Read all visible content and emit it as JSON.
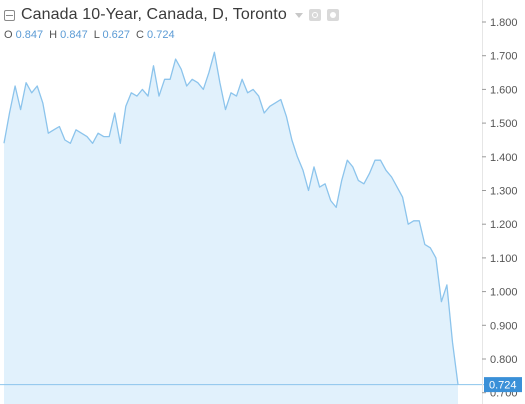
{
  "header": {
    "title": "Canada 10-Year, Canada, D, Toronto",
    "ohlc": [
      {
        "key": "O",
        "value": "0.847"
      },
      {
        "key": "H",
        "value": "0.847"
      },
      {
        "key": "L",
        "value": "0.627"
      },
      {
        "key": "C",
        "value": "0.724"
      }
    ]
  },
  "colors": {
    "line": "#8cc4ec",
    "fill": "#e1f1fc",
    "price_label_bg": "#3a90d8",
    "text": "#3b3b3b",
    "axis_text": "#555555"
  },
  "chart_data": {
    "type": "area",
    "ylim": [
      0.69,
      1.85
    ],
    "y_ticks": [
      "0.700",
      "0.800",
      "0.900",
      "1.000",
      "1.100",
      "1.200",
      "1.300",
      "1.400",
      "1.500",
      "1.600",
      "1.700",
      "1.800"
    ],
    "last_value_label": "0.724",
    "last_value": 0.724,
    "series": [
      {
        "values": [
          1.44,
          1.53,
          1.61,
          1.54,
          1.62,
          1.59,
          1.61,
          1.56,
          1.47,
          1.48,
          1.49,
          1.45,
          1.44,
          1.48,
          1.47,
          1.46,
          1.44,
          1.47,
          1.46,
          1.46,
          1.53,
          1.44,
          1.55,
          1.59,
          1.58,
          1.6,
          1.58,
          1.67,
          1.58,
          1.63,
          1.63,
          1.69,
          1.66,
          1.61,
          1.63,
          1.62,
          1.6,
          1.65,
          1.71,
          1.62,
          1.54,
          1.59,
          1.58,
          1.63,
          1.59,
          1.6,
          1.58,
          1.53,
          1.55,
          1.56,
          1.57,
          1.52,
          1.45,
          1.4,
          1.36,
          1.3,
          1.37,
          1.31,
          1.32,
          1.27,
          1.25,
          1.33,
          1.39,
          1.37,
          1.33,
          1.32,
          1.35,
          1.39,
          1.39,
          1.36,
          1.34,
          1.31,
          1.28,
          1.2,
          1.21,
          1.21,
          1.14,
          1.13,
          1.1,
          0.97,
          1.02,
          0.85,
          0.724
        ]
      }
    ]
  }
}
